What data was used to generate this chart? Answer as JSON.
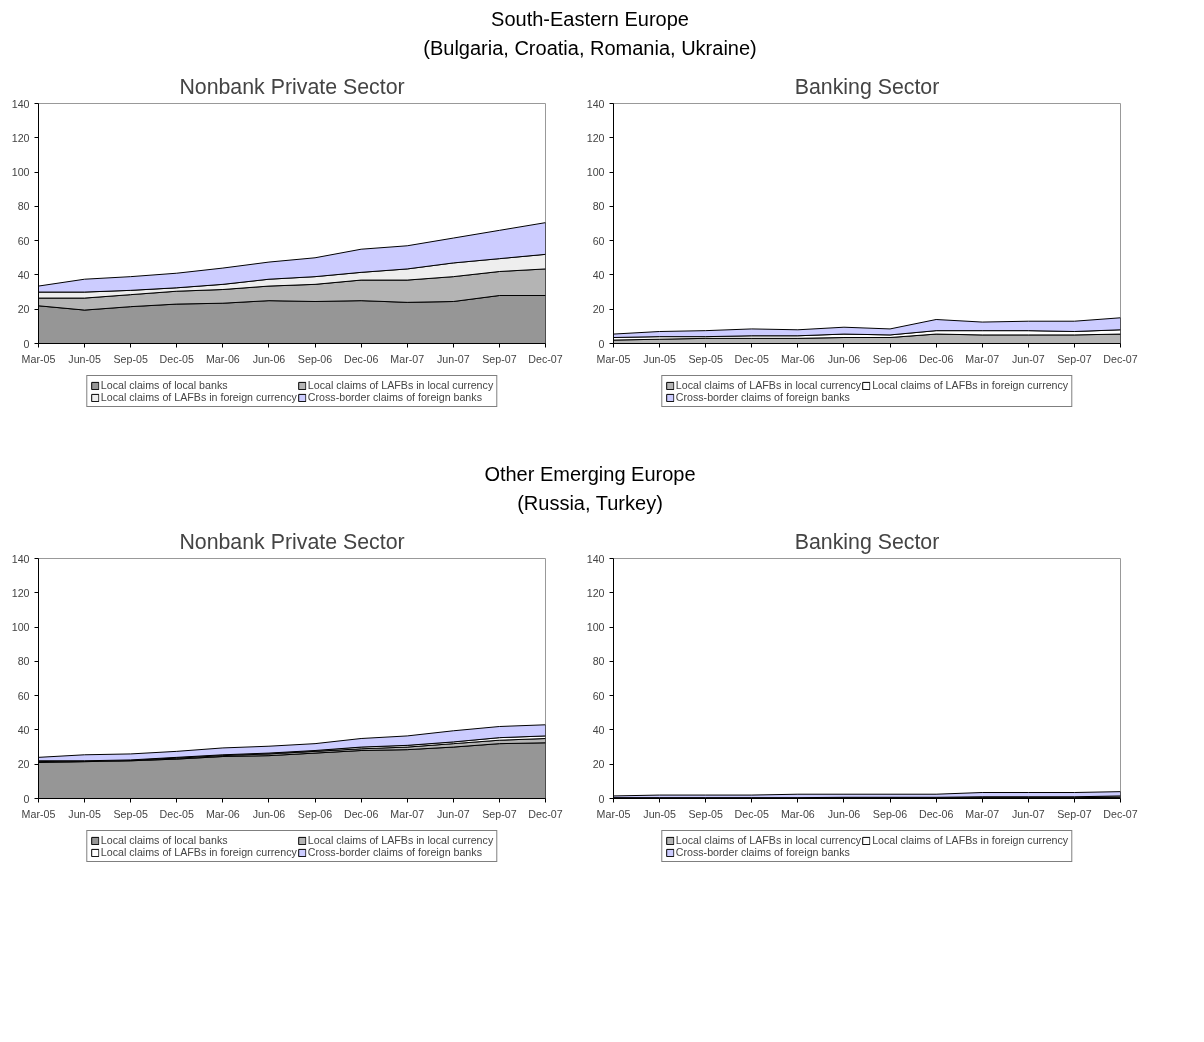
{
  "chart_data": [
    {
      "type": "area",
      "stacked": true,
      "title": "South-Eastern Europe\n(Bulgaria, Croatia, Romania, Ukraine)",
      "subtitle": "Nonbank Private Sector",
      "categories": [
        "Mar-05",
        "Jun-05",
        "Sep-05",
        "Dec-05",
        "Mar-06",
        "Jun-06",
        "Sep-06",
        "Dec-06",
        "Mar-07",
        "Jun-07",
        "Sep-07",
        "Dec-07"
      ],
      "ylim": [
        0,
        140
      ],
      "yticks": [
        0,
        20,
        40,
        60,
        80,
        100,
        120,
        140
      ],
      "grid": false,
      "legend": "bottom",
      "series": [
        {
          "name": "Local claims of local banks",
          "color": "#969696",
          "values": [
            22,
            19.5,
            21.5,
            23,
            23.5,
            25,
            24.5,
            25,
            24,
            24.5,
            28,
            28
          ]
        },
        {
          "name": "Local claims of LAFBs in local currency",
          "color": "#b4b4b4",
          "values": [
            4.5,
            7,
            7,
            7.5,
            8,
            8.5,
            10,
            12,
            13,
            14.5,
            14,
            15.5
          ]
        },
        {
          "name": "Local claims of LAFBs in foreign currency",
          "color": "#eeeeee",
          "values": [
            3.5,
            3.5,
            2.5,
            2,
            3,
            4,
            4.5,
            4.5,
            6.5,
            8,
            7.5,
            8.5
          ]
        },
        {
          "name": "Cross-border claims of foreign banks",
          "color": "#ccccff",
          "values": [
            3.5,
            7.5,
            8,
            8.5,
            9.5,
            10,
            11,
            13.5,
            13.5,
            14.5,
            16.5,
            18.5
          ]
        }
      ]
    },
    {
      "type": "area",
      "stacked": true,
      "subtitle": "Banking Sector",
      "categories": [
        "Mar-05",
        "Jun-05",
        "Sep-05",
        "Dec-05",
        "Mar-06",
        "Jun-06",
        "Sep-06",
        "Dec-06",
        "Mar-07",
        "Jun-07",
        "Sep-07",
        "Dec-07"
      ],
      "ylim": [
        0,
        140
      ],
      "yticks": [
        0,
        20,
        40,
        60,
        80,
        100,
        120,
        140
      ],
      "grid": false,
      "legend": "bottom",
      "series": [
        {
          "name": "Local claims of LAFBs in local currency",
          "color": "#b4b4b4",
          "values": [
            2,
            2.5,
            3,
            3,
            3,
            3.5,
            3.5,
            5.5,
            5,
            5,
            5,
            5.5
          ]
        },
        {
          "name": "Local claims of LAFBs in foreign currency",
          "color": "#ffffff",
          "values": [
            1.5,
            1.5,
            1,
            1.5,
            1.5,
            2,
            1.5,
            2,
            2.5,
            2.5,
            2,
            2.5
          ]
        },
        {
          "name": "Cross-border claims of foreign banks",
          "color": "#ccccff",
          "values": [
            2,
            3,
            3.5,
            4,
            3.5,
            4,
            3.5,
            6.5,
            5,
            5.5,
            6,
            7
          ]
        }
      ]
    },
    {
      "type": "area",
      "stacked": true,
      "title": "Other Emerging Europe\n(Russia, Turkey)",
      "subtitle": "Nonbank Private Sector",
      "categories": [
        "Mar-05",
        "Jun-05",
        "Sep-05",
        "Dec-05",
        "Mar-06",
        "Jun-06",
        "Sep-06",
        "Dec-06",
        "Mar-07",
        "Jun-07",
        "Sep-07",
        "Dec-07"
      ],
      "ylim": [
        0,
        140
      ],
      "yticks": [
        0,
        20,
        40,
        60,
        80,
        100,
        120,
        140
      ],
      "grid": false,
      "legend": "bottom",
      "series": [
        {
          "name": "Local claims of local banks",
          "color": "#969696",
          "values": [
            21,
            21.5,
            22,
            23,
            24.5,
            25,
            26.5,
            28,
            28.5,
            30,
            32,
            32.5
          ]
        },
        {
          "name": "Local claims of LAFBs in local currency",
          "color": "#b4b4b4",
          "values": [
            0.5,
            0.5,
            0.5,
            0.5,
            0.5,
            1,
            1,
            1,
            1.5,
            2,
            2,
            2.5
          ]
        },
        {
          "name": "Local claims of LAFBs in foreign currency",
          "color": "#ffffff",
          "values": [
            0.5,
            0,
            0,
            0.5,
            0.5,
            0.5,
            0.5,
            1,
            1,
            1,
            1.5,
            1.5
          ]
        },
        {
          "name": "Cross-border claims of foreign banks",
          "color": "#ccccff",
          "values": [
            2,
            3.5,
            3.5,
            3.5,
            4,
            4,
            4,
            5,
            5.5,
            6.5,
            6.5,
            6.5
          ]
        }
      ]
    },
    {
      "type": "area",
      "stacked": true,
      "subtitle": "Banking Sector",
      "categories": [
        "Mar-05",
        "Jun-05",
        "Sep-05",
        "Dec-05",
        "Mar-06",
        "Jun-06",
        "Sep-06",
        "Dec-06",
        "Mar-07",
        "Jun-07",
        "Sep-07",
        "Dec-07"
      ],
      "ylim": [
        0,
        140
      ],
      "yticks": [
        0,
        20,
        40,
        60,
        80,
        100,
        120,
        140
      ],
      "grid": false,
      "legend": "bottom",
      "series": [
        {
          "name": "Local claims of LAFBs in local currency",
          "color": "#b4b4b4",
          "values": [
            0.2,
            0.2,
            0.2,
            0.2,
            0.2,
            0.3,
            0.3,
            0.3,
            0.5,
            0.5,
            0.5,
            0.7
          ]
        },
        {
          "name": "Local claims of LAFBs in foreign currency",
          "color": "#ffffff",
          "values": [
            0.3,
            0.3,
            0.3,
            0.3,
            0.3,
            0.4,
            0.4,
            0.4,
            0.5,
            0.5,
            0.5,
            0.8
          ]
        },
        {
          "name": "Cross-border claims of foreign banks",
          "color": "#ccccff",
          "values": [
            1,
            1.5,
            1.5,
            1.5,
            2,
            1.8,
            1.8,
            1.8,
            2.5,
            2.5,
            2.5,
            2.5
          ]
        }
      ]
    }
  ]
}
